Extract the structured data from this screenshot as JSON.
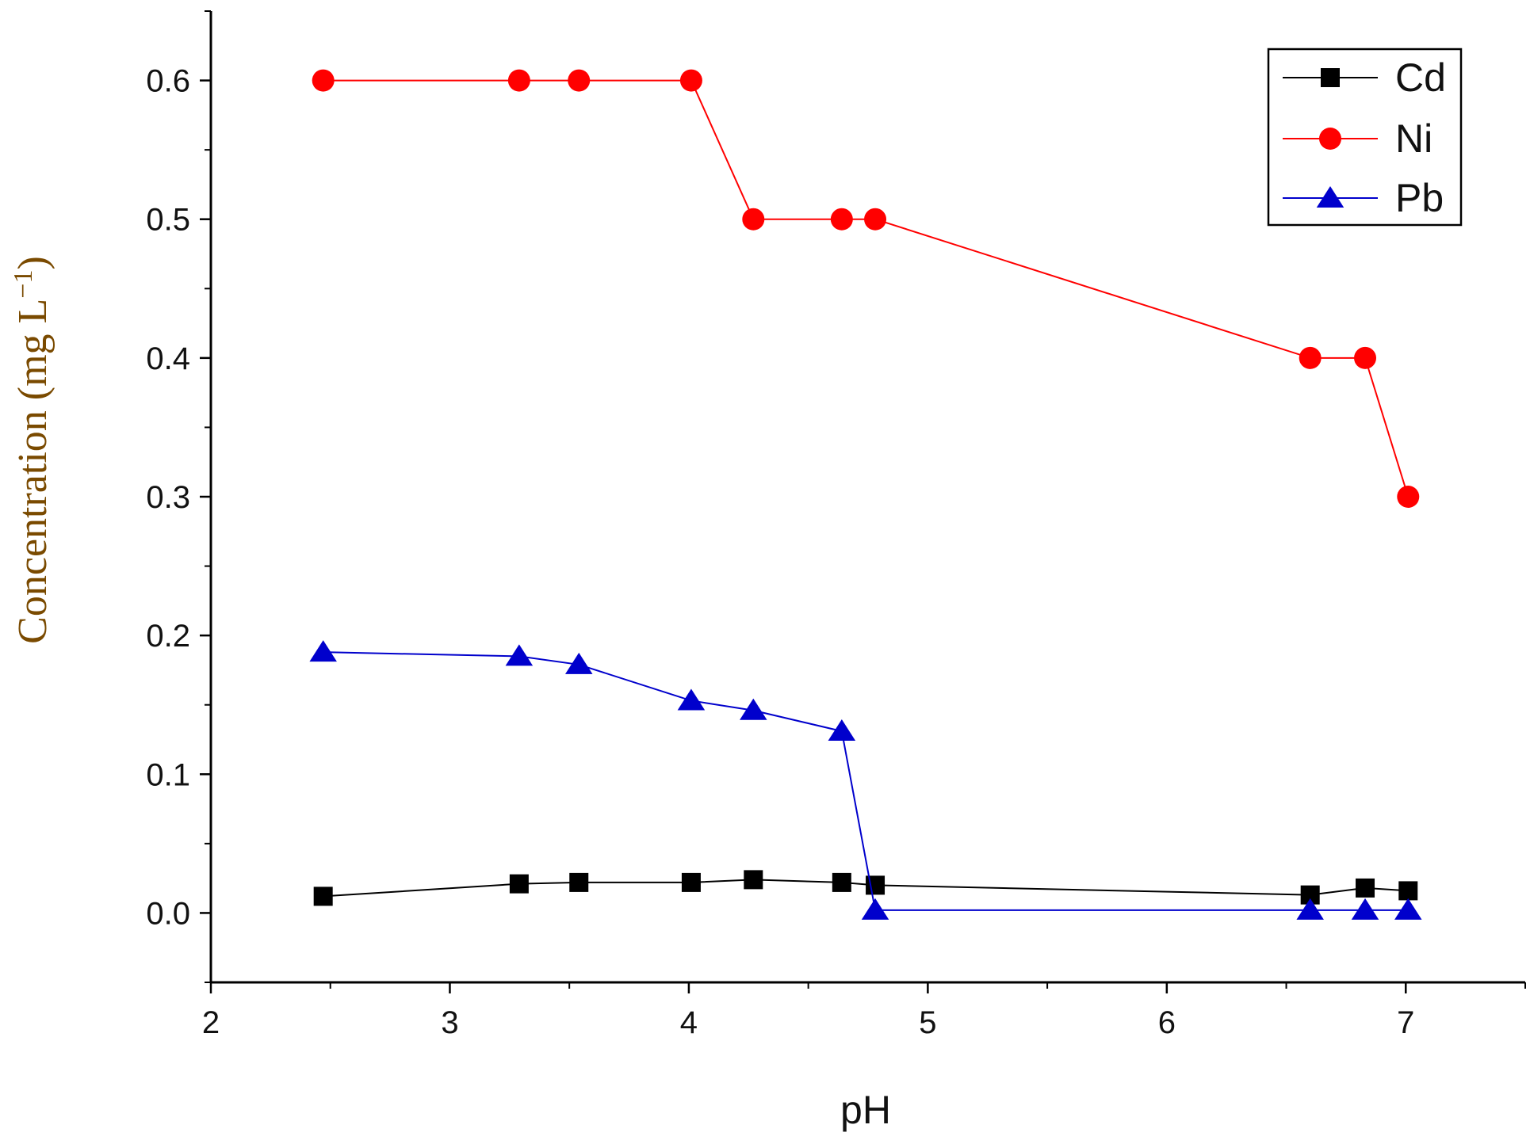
{
  "chart_data": {
    "type": "line",
    "title": "",
    "xlabel": "pH",
    "ylabel": "Concentration (mg L⁻¹)",
    "ylabel_parts": {
      "base": "Concentration (mg L",
      "sup": "−1",
      "close": ")"
    },
    "ylabel_color": "#7a4a00",
    "xlim": [
      2,
      7.5
    ],
    "ylim": [
      -0.05,
      0.65
    ],
    "xticks": [
      2,
      3,
      4,
      5,
      6,
      7
    ],
    "xtick_labels": [
      "2",
      "3",
      "4",
      "5",
      "6",
      "7"
    ],
    "yticks": [
      0.0,
      0.1,
      0.2,
      0.3,
      0.4,
      0.5,
      0.6
    ],
    "ytick_labels": [
      "0.0",
      "0.1",
      "0.2",
      "0.3",
      "0.4",
      "0.5",
      "0.6"
    ],
    "grid": false,
    "legend_position": "top-right",
    "series": [
      {
        "name": "Cd",
        "color": "#000000",
        "marker": "square",
        "x": [
          2.47,
          3.29,
          3.54,
          4.01,
          4.27,
          4.64,
          4.78,
          6.6,
          6.83,
          7.01
        ],
        "values": [
          0.012,
          0.021,
          0.022,
          0.022,
          0.024,
          0.022,
          0.02,
          0.013,
          0.018,
          0.016
        ]
      },
      {
        "name": "Ni",
        "color": "#ff0000",
        "marker": "circle",
        "x": [
          2.47,
          3.29,
          3.54,
          4.01,
          4.27,
          4.64,
          4.78,
          6.6,
          6.83,
          7.01
        ],
        "values": [
          0.6,
          0.6,
          0.6,
          0.6,
          0.5,
          0.5,
          0.5,
          0.4,
          0.4,
          0.3
        ]
      },
      {
        "name": "Pb",
        "color": "#0000cc",
        "marker": "triangle",
        "x": [
          2.47,
          3.29,
          3.54,
          4.01,
          4.27,
          4.64,
          4.78,
          6.6,
          6.83,
          7.01
        ],
        "values": [
          0.188,
          0.185,
          0.179,
          0.153,
          0.146,
          0.131,
          0.002,
          0.002,
          0.002,
          0.002
        ]
      }
    ]
  }
}
